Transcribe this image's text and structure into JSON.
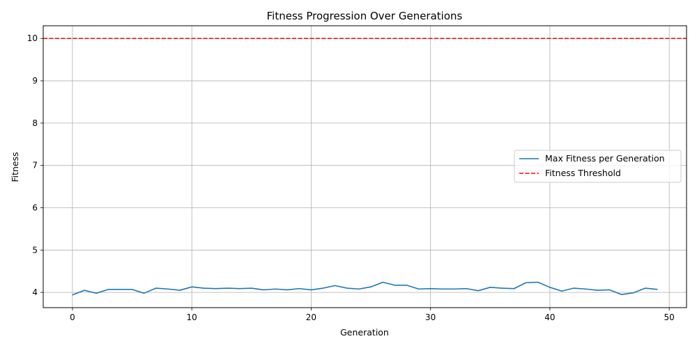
{
  "chart_data": {
    "type": "line",
    "title": "Fitness Progression Over Generations",
    "xlabel": "Generation",
    "ylabel": "Fitness",
    "xlim": [
      -2.45,
      51.45
    ],
    "ylim": [
      3.64,
      10.3
    ],
    "xticks": [
      0,
      10,
      20,
      30,
      40,
      50
    ],
    "yticks": [
      4,
      5,
      6,
      7,
      8,
      9,
      10
    ],
    "grid": true,
    "legend_position": "center-right",
    "series": [
      {
        "name": "Max Fitness per Generation",
        "color": "#1f77b4",
        "style": "solid",
        "x": [
          0,
          1,
          2,
          3,
          4,
          5,
          6,
          7,
          8,
          9,
          10,
          11,
          12,
          13,
          14,
          15,
          16,
          17,
          18,
          19,
          20,
          21,
          22,
          23,
          24,
          25,
          26,
          27,
          28,
          29,
          30,
          31,
          32,
          33,
          34,
          35,
          36,
          37,
          38,
          39,
          40,
          41,
          42,
          43,
          44,
          45,
          46,
          47,
          48,
          49
        ],
        "y": [
          3.94,
          4.05,
          3.98,
          4.07,
          4.07,
          4.07,
          3.98,
          4.1,
          4.08,
          4.05,
          4.13,
          4.1,
          4.09,
          4.1,
          4.09,
          4.1,
          4.06,
          4.08,
          4.06,
          4.09,
          4.06,
          4.1,
          4.16,
          4.1,
          4.08,
          4.13,
          4.24,
          4.17,
          4.17,
          4.08,
          4.09,
          4.08,
          4.08,
          4.09,
          4.04,
          4.12,
          4.1,
          4.09,
          4.23,
          4.24,
          4.12,
          4.03,
          4.1,
          4.08,
          4.05,
          4.06,
          3.95,
          3.99,
          4.1,
          4.07
        ]
      },
      {
        "name": "Fitness Threshold",
        "color": "#ff0000",
        "style": "dashed",
        "y_constant": 10
      }
    ]
  }
}
